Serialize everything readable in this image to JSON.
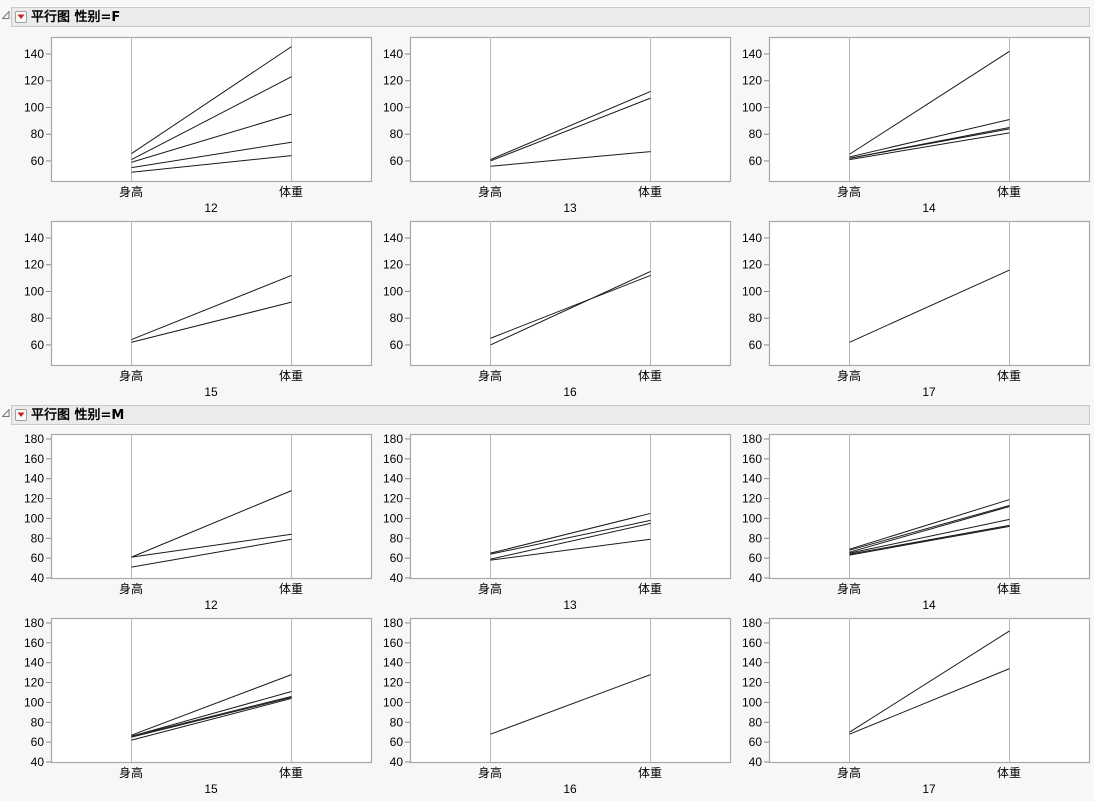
{
  "sections": [
    {
      "title": "平行图 性别=F",
      "y_ticks": [
        60,
        80,
        100,
        120,
        140
      ],
      "y_range": [
        45,
        152.7
      ],
      "panels": [
        {
          "label": "12",
          "lines": [
            [
              65.5,
              145.5
            ],
            [
              61,
              123
            ],
            [
              59,
              95
            ],
            [
              55,
              74
            ],
            [
              51.5,
              64
            ]
          ]
        },
        {
          "label": "13",
          "lines": [
            [
              61,
              112
            ],
            [
              60,
              107
            ],
            [
              56,
              67
            ]
          ]
        },
        {
          "label": "14",
          "lines": [
            [
              65,
              142
            ],
            [
              63,
              91
            ],
            [
              62,
              85
            ],
            [
              62,
              84
            ],
            [
              61,
              81
            ]
          ]
        },
        {
          "label": "15",
          "lines": [
            [
              64,
              112
            ],
            [
              62,
              92
            ]
          ]
        },
        {
          "label": "16",
          "lines": [
            [
              65,
              112
            ],
            [
              60,
              115
            ]
          ]
        },
        {
          "label": "17",
          "lines": [
            [
              62,
              116
            ]
          ]
        }
      ]
    },
    {
      "title": "平行图 性别=M",
      "y_ticks": [
        40,
        60,
        80,
        100,
        120,
        140,
        160,
        180
      ],
      "y_range": [
        40,
        185
      ],
      "panels": [
        {
          "label": "12",
          "lines": [
            [
              61,
              128
            ],
            [
              61,
              84
            ],
            [
              51,
              79
            ]
          ]
        },
        {
          "label": "13",
          "lines": [
            [
              65,
              105
            ],
            [
              64,
              98
            ],
            [
              59,
              95
            ],
            [
              58,
              79
            ]
          ]
        },
        {
          "label": "14",
          "lines": [
            [
              69,
              119
            ],
            [
              68,
              113
            ],
            [
              66,
              112
            ],
            [
              65,
              99
            ],
            [
              64,
              93
            ],
            [
              63,
              92
            ]
          ]
        },
        {
          "label": "15",
          "lines": [
            [
              67,
              128
            ],
            [
              66,
              111
            ],
            [
              66,
              106
            ],
            [
              65,
              105
            ],
            [
              62,
              104
            ]
          ]
        },
        {
          "label": "16",
          "lines": [
            [
              68,
              128
            ]
          ]
        },
        {
          "label": "17",
          "lines": [
            [
              70,
              172
            ],
            [
              68,
              134
            ]
          ]
        }
      ]
    }
  ],
  "axis_categories": [
    "身高",
    "体重"
  ],
  "colors": {
    "line": "#1a1a1a",
    "frame": "#a8a8a8",
    "axis_line": "#b8b8b8",
    "header_bg": "#ebebeb",
    "menu_arrow": "#cc1f1f"
  },
  "chart_data": [
    {
      "type": "line",
      "title": "平行图 性别=F",
      "chart_kind": "parallel coordinates, faceted by age",
      "categories": [
        "身高",
        "体重"
      ],
      "facets": [
        "12",
        "13",
        "14",
        "15",
        "16",
        "17"
      ],
      "ylim": [
        45,
        152.7
      ],
      "yticks": [
        60,
        80,
        100,
        120,
        140
      ],
      "series": [
        {
          "facet": "12",
          "values": [
            [
              65.5,
              145.5
            ],
            [
              61,
              123
            ],
            [
              59,
              95
            ],
            [
              55,
              74
            ],
            [
              51.5,
              64
            ]
          ]
        },
        {
          "facet": "13",
          "values": [
            [
              61,
              112
            ],
            [
              60,
              107
            ],
            [
              56,
              67
            ]
          ]
        },
        {
          "facet": "14",
          "values": [
            [
              65,
              142
            ],
            [
              63,
              91
            ],
            [
              62,
              85
            ],
            [
              62,
              84
            ],
            [
              61,
              81
            ]
          ]
        },
        {
          "facet": "15",
          "values": [
            [
              64,
              112
            ],
            [
              62,
              92
            ]
          ]
        },
        {
          "facet": "16",
          "values": [
            [
              65,
              112
            ],
            [
              60,
              115
            ]
          ]
        },
        {
          "facet": "17",
          "values": [
            [
              62,
              116
            ]
          ]
        }
      ],
      "grid": false
    },
    {
      "type": "line",
      "title": "平行图 性别=M",
      "chart_kind": "parallel coordinates, faceted by age",
      "categories": [
        "身高",
        "体重"
      ],
      "facets": [
        "12",
        "13",
        "14",
        "15",
        "16",
        "17"
      ],
      "ylim": [
        40,
        185
      ],
      "yticks": [
        40,
        60,
        80,
        100,
        120,
        140,
        160,
        180
      ],
      "series": [
        {
          "facet": "12",
          "values": [
            [
              61,
              128
            ],
            [
              61,
              84
            ],
            [
              51,
              79
            ]
          ]
        },
        {
          "facet": "13",
          "values": [
            [
              65,
              105
            ],
            [
              64,
              98
            ],
            [
              59,
              95
            ],
            [
              58,
              79
            ]
          ]
        },
        {
          "facet": "14",
          "values": [
            [
              69,
              119
            ],
            [
              68,
              113
            ],
            [
              66,
              112
            ],
            [
              65,
              99
            ],
            [
              64,
              93
            ],
            [
              63,
              92
            ]
          ]
        },
        {
          "facet": "15",
          "values": [
            [
              67,
              128
            ],
            [
              66,
              111
            ],
            [
              66,
              106
            ],
            [
              65,
              105
            ],
            [
              62,
              104
            ]
          ]
        },
        {
          "facet": "16",
          "values": [
            [
              68,
              128
            ]
          ]
        },
        {
          "facet": "17",
          "values": [
            [
              70,
              172
            ],
            [
              68,
              134
            ]
          ]
        }
      ],
      "grid": false
    }
  ]
}
